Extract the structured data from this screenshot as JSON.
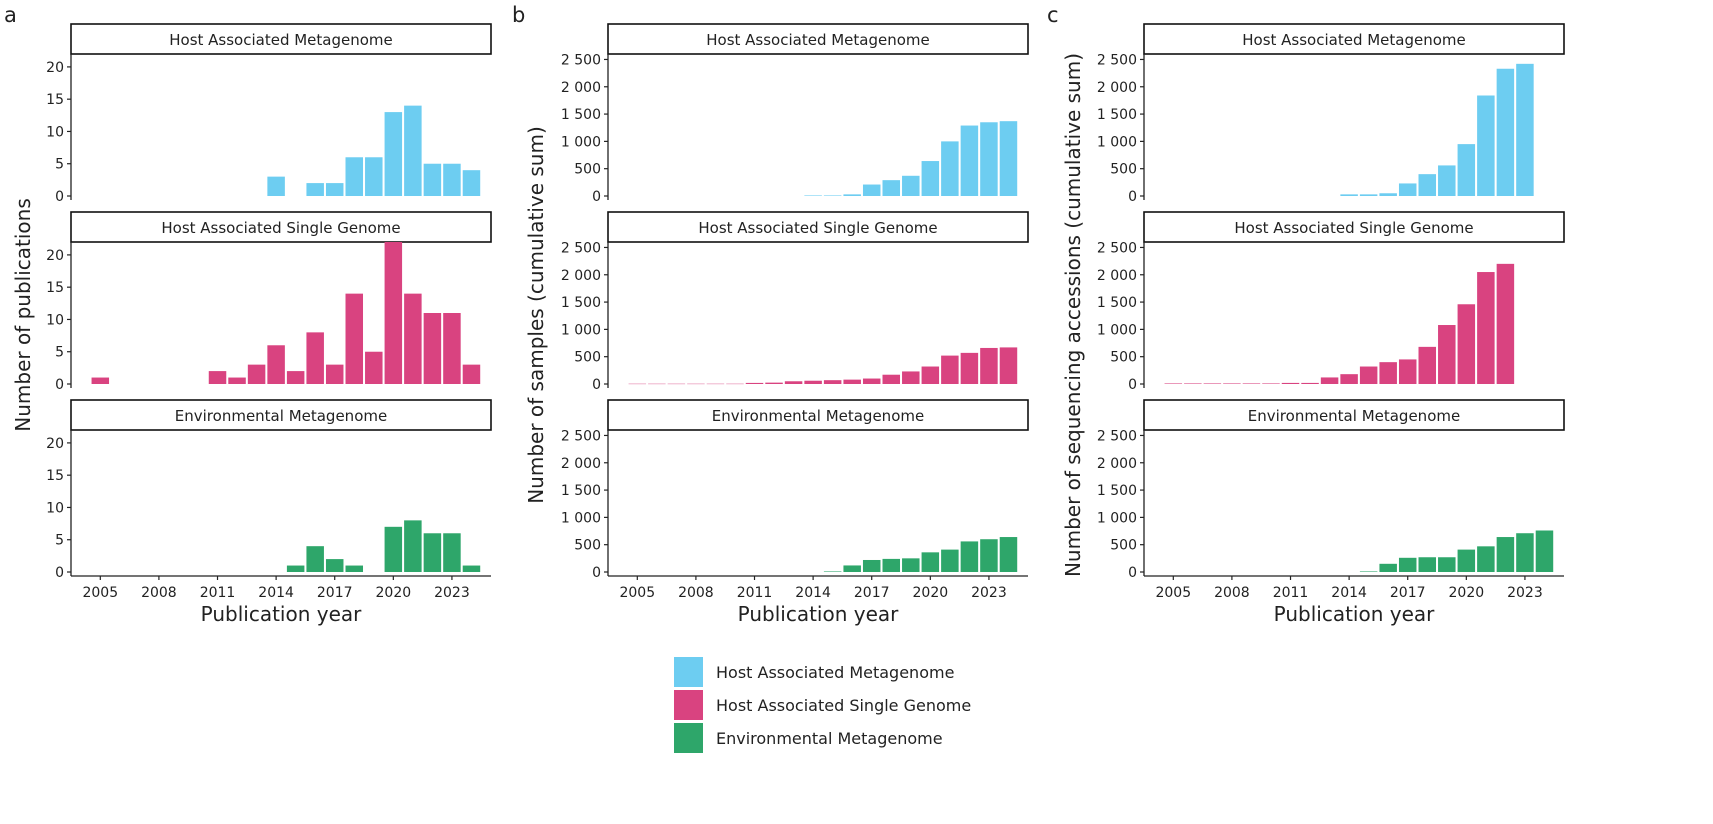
{
  "colors": {
    "host_metagenome": "#6dcdf1",
    "host_single_genome": "#d94380",
    "environmental_metagenome": "#2ea66a",
    "axis": "#222222",
    "strip_border": "#111111"
  },
  "strip_labels": [
    "Host Associated Metagenome",
    "Host Associated Single Genome",
    "Environmental Metagenome"
  ],
  "xlabel": "Publication year",
  "legend": {
    "entries": [
      {
        "label": "Host Associated Metagenome",
        "color": "#6dcdf1"
      },
      {
        "label": "Host Associated Single Genome",
        "color": "#d94380"
      },
      {
        "label": "Environmental Metagenome",
        "color": "#2ea66a"
      }
    ]
  },
  "chart_data": [
    {
      "type": "bar",
      "panel_letter": "a",
      "ylabel": "Number of publications",
      "xlabel": "Publication year",
      "x_ticks": [
        2005,
        2008,
        2011,
        2014,
        2017,
        2020,
        2023
      ],
      "x_tick_labels": [
        "2005",
        "2008",
        "2011",
        "2014",
        "2017",
        "2020",
        "2023"
      ],
      "xlim": [
        2003.5,
        2025
      ],
      "ylim": [
        0,
        22
      ],
      "y_ticks": [
        0,
        5,
        10,
        15,
        20
      ],
      "y_tick_labels": [
        "0",
        "5",
        "10",
        "15",
        "20"
      ],
      "facets": [
        {
          "name": "Host Associated Metagenome",
          "points": [
            [
              2014,
              3
            ],
            [
              2016,
              2
            ],
            [
              2017,
              2
            ],
            [
              2018,
              6
            ],
            [
              2019,
              6
            ],
            [
              2020,
              13
            ],
            [
              2021,
              14
            ],
            [
              2022,
              5
            ],
            [
              2023,
              5
            ],
            [
              2024,
              4
            ]
          ]
        },
        {
          "name": "Host Associated Single Genome",
          "points": [
            [
              2005,
              1
            ],
            [
              2011,
              2
            ],
            [
              2012,
              1
            ],
            [
              2013,
              3
            ],
            [
              2014,
              6
            ],
            [
              2015,
              2
            ],
            [
              2016,
              8
            ],
            [
              2017,
              3
            ],
            [
              2018,
              14
            ],
            [
              2019,
              5
            ],
            [
              2020,
              22
            ],
            [
              2021,
              14
            ],
            [
              2022,
              11
            ],
            [
              2023,
              11
            ],
            [
              2024,
              3
            ]
          ]
        },
        {
          "name": "Environmental Metagenome",
          "points": [
            [
              2015,
              1
            ],
            [
              2016,
              4
            ],
            [
              2017,
              2
            ],
            [
              2018,
              1
            ],
            [
              2020,
              7
            ],
            [
              2021,
              8
            ],
            [
              2022,
              6
            ],
            [
              2023,
              6
            ],
            [
              2024,
              1
            ]
          ]
        }
      ]
    },
    {
      "type": "bar",
      "panel_letter": "b",
      "ylabel": "Number of samples (cumulative sum)",
      "xlabel": "Publication year",
      "x_ticks": [
        2005,
        2008,
        2011,
        2014,
        2017,
        2020,
        2023
      ],
      "x_tick_labels": [
        "2005",
        "2008",
        "2011",
        "2014",
        "2017",
        "2020",
        "2023"
      ],
      "xlim": [
        2003.5,
        2025
      ],
      "ylim": [
        0,
        2600
      ],
      "y_ticks": [
        0,
        500,
        1000,
        1500,
        2000,
        2500
      ],
      "y_tick_labels": [
        "0",
        "500",
        "1 000",
        "1 500",
        "2 000",
        "2 500"
      ],
      "facets": [
        {
          "name": "Host Associated Metagenome",
          "points": [
            [
              2014,
              10
            ],
            [
              2015,
              10
            ],
            [
              2016,
              30
            ],
            [
              2017,
              210
            ],
            [
              2018,
              290
            ],
            [
              2019,
              370
            ],
            [
              2020,
              640
            ],
            [
              2021,
              1000
            ],
            [
              2022,
              1290
            ],
            [
              2023,
              1350
            ],
            [
              2024,
              1370
            ]
          ]
        },
        {
          "name": "Host Associated Single Genome",
          "points": [
            [
              2005,
              5
            ],
            [
              2006,
              5
            ],
            [
              2007,
              5
            ],
            [
              2008,
              5
            ],
            [
              2009,
              5
            ],
            [
              2010,
              5
            ],
            [
              2011,
              20
            ],
            [
              2012,
              25
            ],
            [
              2013,
              50
            ],
            [
              2014,
              60
            ],
            [
              2015,
              70
            ],
            [
              2016,
              80
            ],
            [
              2017,
              100
            ],
            [
              2018,
              170
            ],
            [
              2019,
              230
            ],
            [
              2020,
              320
            ],
            [
              2021,
              520
            ],
            [
              2022,
              570
            ],
            [
              2023,
              660
            ],
            [
              2024,
              670
            ]
          ]
        },
        {
          "name": "Environmental Metagenome",
          "points": [
            [
              2015,
              10
            ],
            [
              2016,
              120
            ],
            [
              2017,
              220
            ],
            [
              2018,
              240
            ],
            [
              2019,
              250
            ],
            [
              2020,
              360
            ],
            [
              2021,
              410
            ],
            [
              2022,
              560
            ],
            [
              2023,
              600
            ],
            [
              2024,
              640
            ]
          ]
        }
      ]
    },
    {
      "type": "bar",
      "panel_letter": "c",
      "ylabel": "Number of sequencing accessions (cumulative sum)",
      "xlabel": "Publication year",
      "x_ticks": [
        2005,
        2008,
        2011,
        2014,
        2017,
        2020,
        2023
      ],
      "x_tick_labels": [
        "2005",
        "2008",
        "2011",
        "2014",
        "2017",
        "2020",
        "2023"
      ],
      "xlim": [
        2003.5,
        2025
      ],
      "ylim": [
        0,
        2600
      ],
      "y_ticks": [
        0,
        500,
        1000,
        1500,
        2000,
        2500
      ],
      "y_tick_labels": [
        "0",
        "500",
        "1 000",
        "1 500",
        "2 000",
        "2 500"
      ],
      "facets": [
        {
          "name": "Host Associated Metagenome",
          "points": [
            [
              2014,
              30
            ],
            [
              2015,
              30
            ],
            [
              2016,
              50
            ],
            [
              2017,
              230
            ],
            [
              2018,
              400
            ],
            [
              2019,
              560
            ],
            [
              2020,
              950
            ],
            [
              2021,
              1840
            ],
            [
              2022,
              2330
            ],
            [
              2023,
              2420
            ]
          ]
        },
        {
          "name": "Host Associated Single Genome",
          "points": [
            [
              2005,
              10
            ],
            [
              2006,
              10
            ],
            [
              2007,
              10
            ],
            [
              2008,
              10
            ],
            [
              2009,
              10
            ],
            [
              2010,
              10
            ],
            [
              2011,
              20
            ],
            [
              2012,
              20
            ],
            [
              2013,
              120
            ],
            [
              2014,
              180
            ],
            [
              2015,
              320
            ],
            [
              2016,
              400
            ],
            [
              2017,
              450
            ],
            [
              2018,
              680
            ],
            [
              2019,
              1080
            ],
            [
              2020,
              1460
            ],
            [
              2021,
              2050
            ],
            [
              2022,
              2200
            ]
          ]
        },
        {
          "name": "Environmental Metagenome",
          "points": [
            [
              2015,
              10
            ],
            [
              2016,
              150
            ],
            [
              2017,
              260
            ],
            [
              2018,
              270
            ],
            [
              2019,
              270
            ],
            [
              2020,
              410
            ],
            [
              2021,
              470
            ],
            [
              2022,
              640
            ],
            [
              2023,
              710
            ],
            [
              2024,
              760
            ]
          ]
        }
      ]
    }
  ]
}
